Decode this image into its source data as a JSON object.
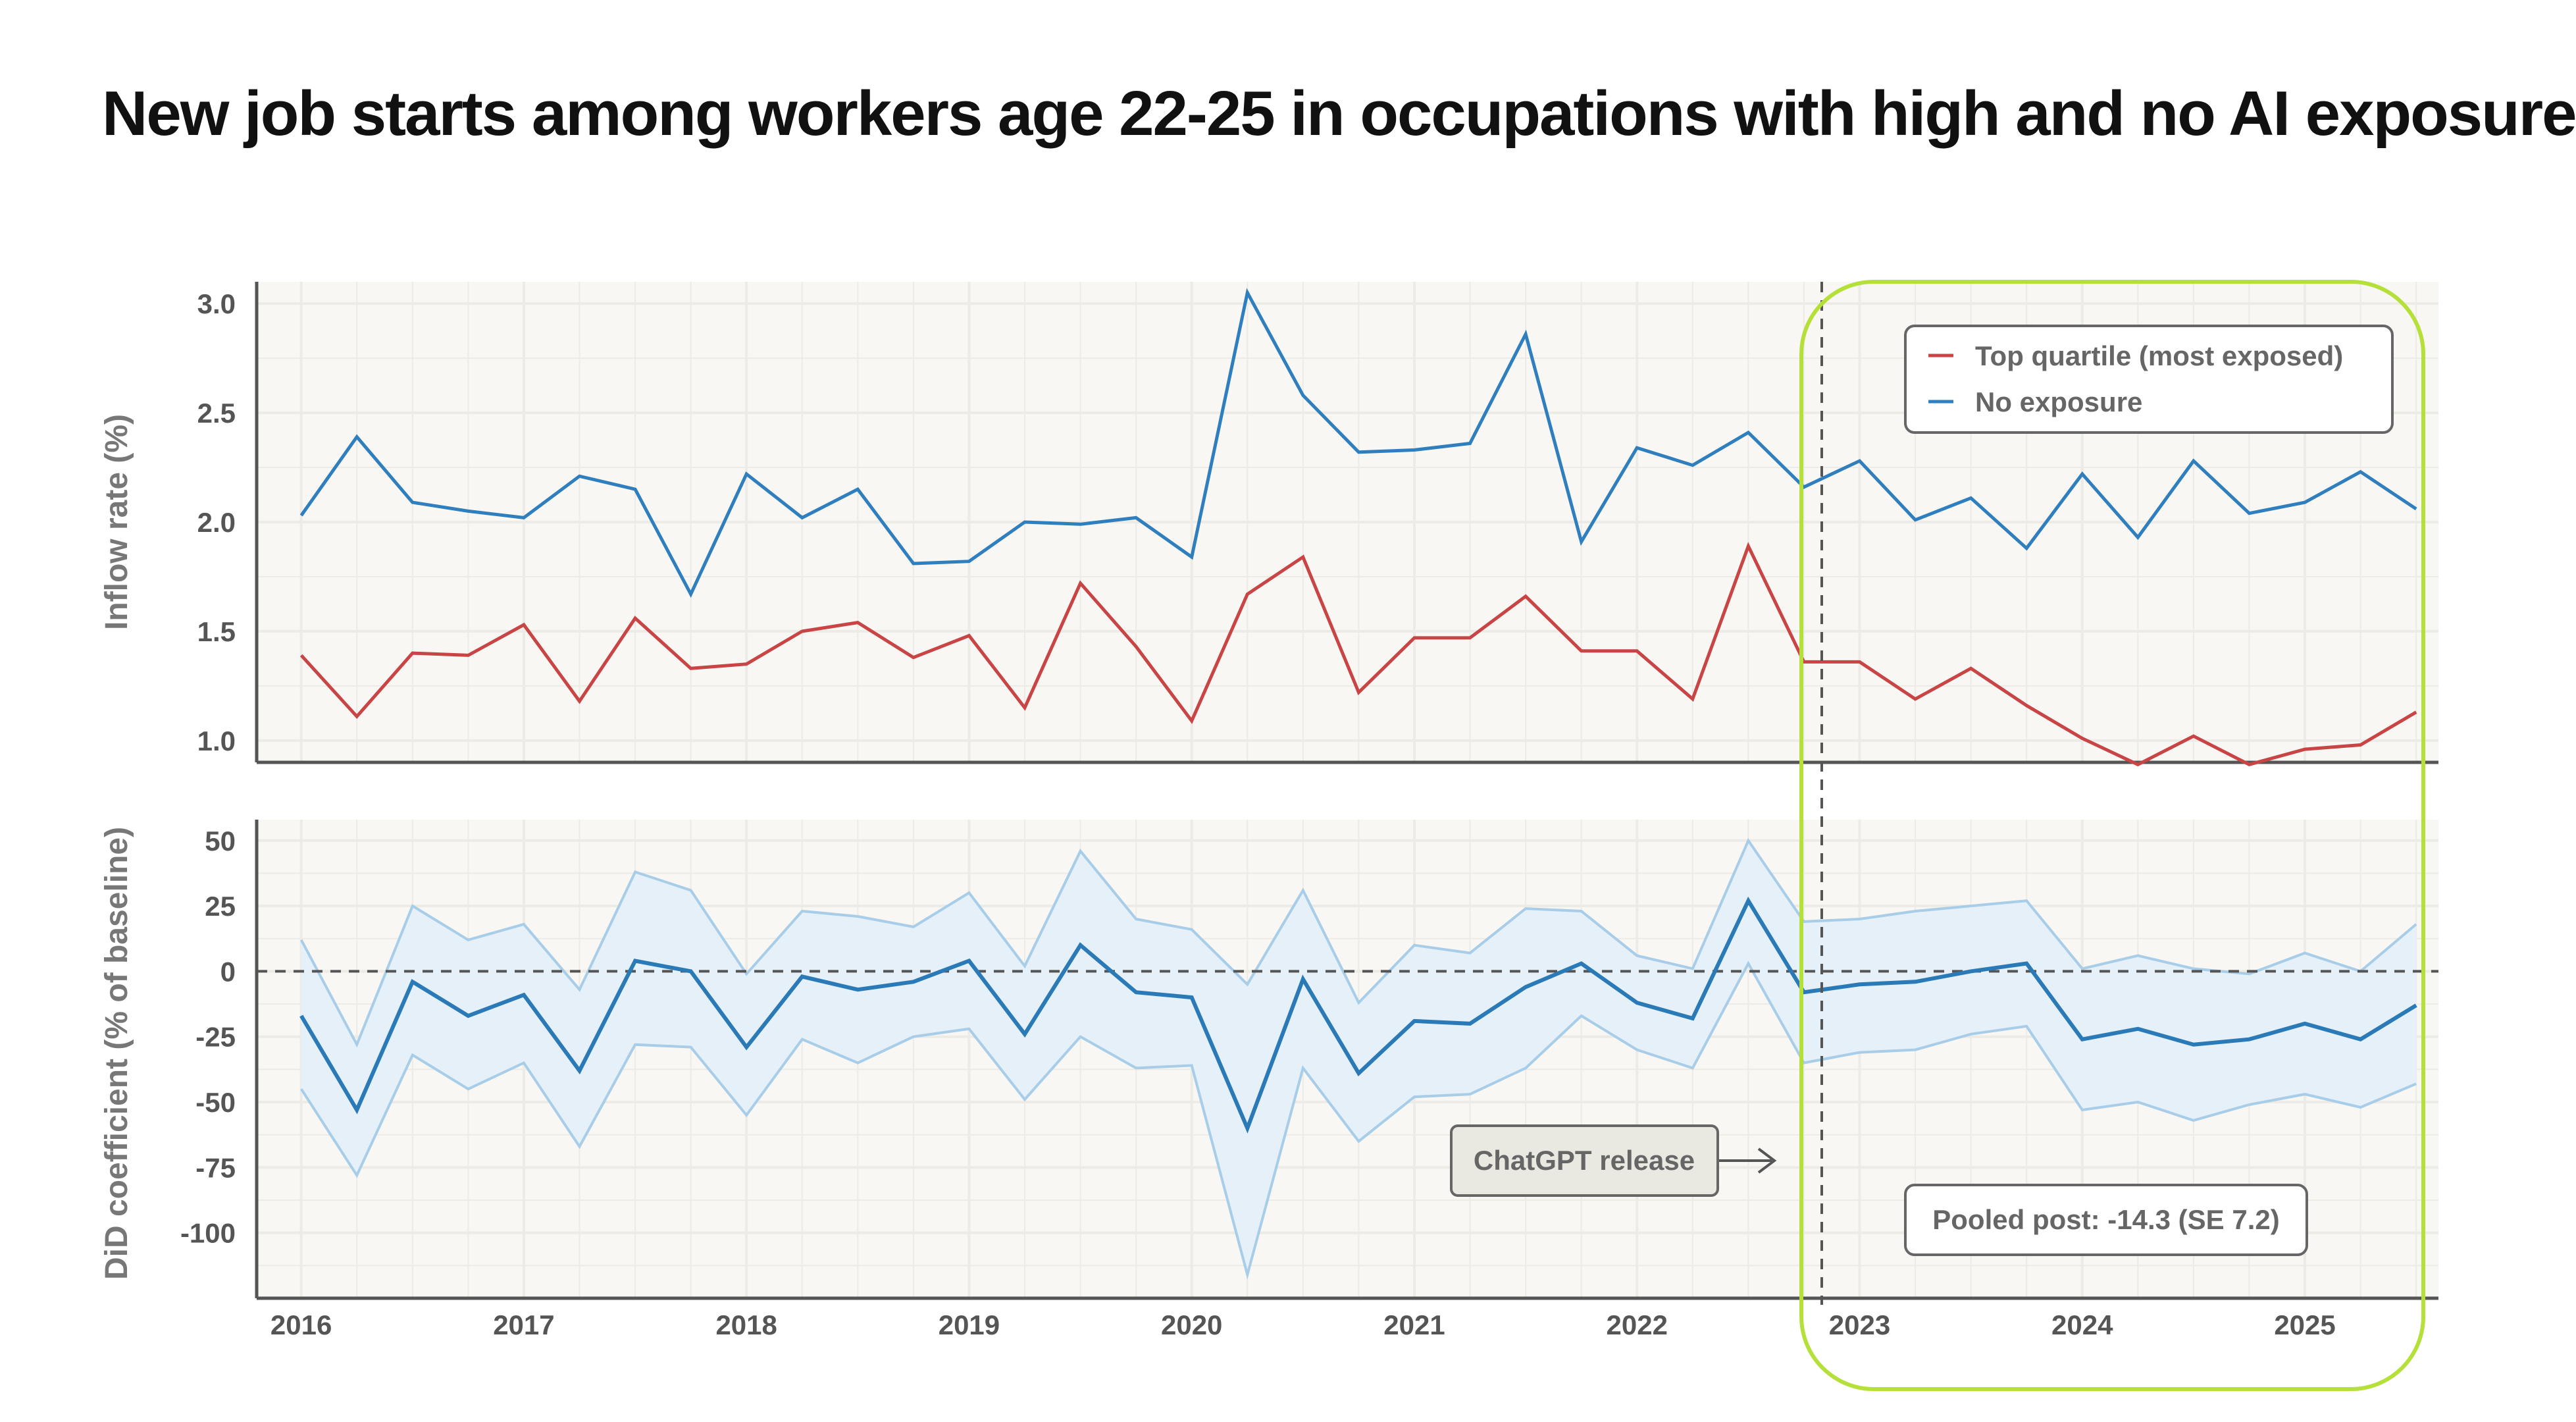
{
  "title": "New job starts among workers age 22-25 in occupations with high and no AI exposure",
  "colors": {
    "top_quartile": "#c94545",
    "no_exposure": "#2f7fbf",
    "did_line": "#2a7ab8",
    "ci_band_fill": "#e6f0f9",
    "ci_band_edge": "#a8cde8",
    "panel_bg": "#f8f7f3",
    "grid": "#ecebe5",
    "axis": "#555555",
    "tick_text": "#555555",
    "highlight_outline": "#b5e03a"
  },
  "chart_data": [
    {
      "type": "line",
      "ylabel": "Inflow rate (%)",
      "ylim": [
        0.9,
        3.1
      ],
      "yticks": [
        "1.0",
        "1.5",
        "2.0",
        "2.5",
        "3.0"
      ],
      "grid": true,
      "legend_position": "top-right",
      "x": [
        2016.0,
        2016.25,
        2016.5,
        2016.75,
        2017.0,
        2017.25,
        2017.5,
        2017.75,
        2018.0,
        2018.25,
        2018.5,
        2018.75,
        2019.0,
        2019.25,
        2019.5,
        2019.75,
        2020.0,
        2020.25,
        2020.5,
        2020.75,
        2021.0,
        2021.25,
        2021.5,
        2021.75,
        2022.0,
        2022.25,
        2022.5,
        2022.75,
        2023.0,
        2023.25,
        2023.5,
        2023.75,
        2024.0,
        2024.25,
        2024.5,
        2024.75,
        2025.0,
        2025.25,
        2025.5
      ],
      "series": [
        {
          "name": "Top quartile (most exposed)",
          "values": [
            1.39,
            1.11,
            1.4,
            1.39,
            1.53,
            1.18,
            1.56,
            1.33,
            1.35,
            1.5,
            1.54,
            1.38,
            1.48,
            1.15,
            1.72,
            1.43,
            1.09,
            1.67,
            1.84,
            1.22,
            1.47,
            1.47,
            1.66,
            1.41,
            1.41,
            1.19,
            1.89,
            1.36,
            1.36,
            1.19,
            1.33,
            1.16,
            1.01,
            0.89,
            1.02,
            0.89,
            0.96,
            0.98,
            1.13
          ]
        },
        {
          "name": "No exposure",
          "values": [
            2.03,
            2.39,
            2.09,
            2.05,
            2.02,
            2.21,
            2.15,
            1.67,
            2.22,
            2.02,
            2.15,
            1.81,
            1.82,
            2.0,
            1.99,
            2.02,
            1.84,
            3.05,
            2.58,
            2.32,
            2.33,
            2.36,
            2.86,
            1.91,
            2.34,
            2.26,
            2.41,
            2.16,
            2.28,
            2.01,
            2.11,
            1.88,
            2.22,
            1.93,
            2.28,
            2.04,
            2.09,
            2.23,
            2.06
          ]
        }
      ]
    },
    {
      "type": "line",
      "ylabel": "DiD coefficient (% of baseline)",
      "ylim": [
        -125,
        58
      ],
      "yticks": [
        "50",
        "25",
        "0",
        "-25",
        "-50",
        "-75",
        "-100"
      ],
      "grid": true,
      "xticks": [
        "2016",
        "2017",
        "2018",
        "2019",
        "2020",
        "2021",
        "2022",
        "2023",
        "2024",
        "2025"
      ],
      "x": [
        2016.0,
        2016.25,
        2016.5,
        2016.75,
        2017.0,
        2017.25,
        2017.5,
        2017.75,
        2018.0,
        2018.25,
        2018.5,
        2018.75,
        2019.0,
        2019.25,
        2019.5,
        2019.75,
        2020.0,
        2020.25,
        2020.5,
        2020.75,
        2021.0,
        2021.25,
        2021.5,
        2021.75,
        2022.0,
        2022.25,
        2022.5,
        2022.75,
        2023.0,
        2023.25,
        2023.5,
        2023.75,
        2024.0,
        2024.25,
        2024.5,
        2024.75,
        2025.0,
        2025.25,
        2025.5
      ],
      "series": [
        {
          "name": "",
          "values": [
            -17,
            -53,
            -4,
            -17,
            -9,
            -38,
            4,
            0,
            -29,
            -2,
            -7,
            -4,
            4,
            -24,
            10,
            -8,
            -10,
            -60,
            -3,
            -39,
            -19,
            -20,
            -6,
            3,
            -12,
            -18,
            27,
            -8,
            -5,
            -4,
            0,
            3,
            -26,
            -22,
            -28,
            -26,
            -20,
            -26,
            -13
          ]
        }
      ],
      "ci_lower": [
        -45,
        -78,
        -32,
        -45,
        -35,
        -67,
        -28,
        -29,
        -55,
        -26,
        -35,
        -25,
        -22,
        -49,
        -25,
        -37,
        -36,
        -116,
        -37,
        -65,
        -48,
        -47,
        -37,
        -17,
        -30,
        -37,
        3,
        -35,
        -31,
        -30,
        -24,
        -21,
        -53,
        -50,
        -57,
        -51,
        -47,
        -52,
        -43
      ],
      "ci_upper": [
        12,
        -28,
        25,
        12,
        18,
        -7,
        38,
        31,
        -1,
        23,
        21,
        17,
        30,
        2,
        46,
        20,
        16,
        -5,
        31,
        -12,
        10,
        7,
        24,
        23,
        6,
        1,
        50,
        19,
        20,
        23,
        25,
        27,
        1,
        6,
        1,
        -1,
        7,
        0,
        18
      ],
      "reference_line": 0
    }
  ],
  "annotations": {
    "release_label": "ChatGPT release",
    "release_x": 2022.83,
    "pooled_label": "Pooled post: -14.3 (SE 7.2)"
  }
}
